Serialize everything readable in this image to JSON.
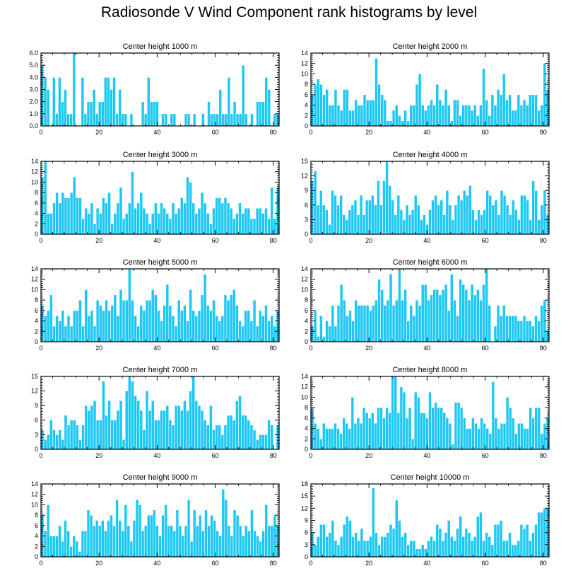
{
  "figure": {
    "title": "Radiosonde V Wind Component rank histograms by level",
    "bar_color": "#1ec8f4",
    "axis_color": "#000000"
  },
  "chart_data": [
    {
      "type": "bar",
      "title": "Center height 1000 m",
      "xlabel": "",
      "ylabel": "",
      "xlim": [
        0,
        82
      ],
      "ylim": [
        0,
        6
      ],
      "yticks": [
        0,
        1,
        2,
        3,
        4,
        5,
        6
      ],
      "ytick_labels": [
        "0.0",
        "1.0",
        "2.0",
        "3.0",
        "4.0",
        "5.0",
        "6.0"
      ],
      "xticks": [
        0,
        20,
        40,
        60,
        80
      ],
      "values": [
        5,
        4,
        3,
        0,
        4,
        1,
        4,
        2,
        3,
        1,
        1,
        6,
        0,
        0,
        4,
        1,
        2,
        2,
        3,
        1,
        2,
        2,
        4,
        4,
        3,
        4,
        1,
        3,
        1,
        1,
        0,
        1,
        0,
        0,
        0,
        2,
        1,
        4,
        2,
        2,
        2,
        0,
        1,
        1,
        0,
        1,
        1,
        0,
        0,
        0,
        1,
        1,
        0,
        1,
        0,
        0,
        1,
        0,
        2,
        1,
        1,
        1,
        3,
        1,
        1,
        4,
        1,
        2,
        1,
        1,
        5,
        1,
        0,
        1,
        0,
        2,
        2,
        2,
        4,
        3,
        0,
        1,
        1
      ]
    },
    {
      "type": "bar",
      "title": "Center height 2000 m",
      "xlabel": "",
      "ylabel": "",
      "xlim": [
        0,
        82
      ],
      "ylim": [
        0,
        14
      ],
      "yticks": [
        0,
        2,
        4,
        6,
        8,
        10,
        12,
        14
      ],
      "ytick_labels": [
        "0",
        "2",
        "4",
        "6",
        "8",
        "10",
        "12",
        "14"
      ],
      "xticks": [
        0,
        20,
        40,
        60,
        80
      ],
      "values": [
        6,
        8,
        9,
        8,
        6,
        7,
        4,
        4,
        7,
        4,
        3,
        7,
        7,
        3,
        3,
        5,
        4,
        4,
        6,
        5,
        5,
        5,
        13,
        8,
        6,
        5,
        1,
        1,
        3,
        4,
        2,
        1,
        3,
        1,
        4,
        4,
        8,
        10,
        4,
        3,
        4,
        5,
        4,
        8,
        5,
        4,
        7,
        4,
        1,
        5,
        5,
        2,
        4,
        4,
        4,
        3,
        4,
        2,
        4,
        11,
        5,
        2,
        6,
        4,
        7,
        6,
        10,
        5,
        6,
        3,
        3,
        6,
        4,
        5,
        4,
        6,
        6,
        6,
        3,
        4,
        12,
        7
      ]
    },
    {
      "type": "bar",
      "title": "Center height 3000 m",
      "xlabel": "",
      "ylabel": "",
      "xlim": [
        0,
        82
      ],
      "ylim": [
        0,
        14
      ],
      "yticks": [
        0,
        2,
        4,
        6,
        8,
        10,
        12,
        14
      ],
      "ytick_labels": [
        "0",
        "2",
        "4",
        "6",
        "8",
        "10",
        "12",
        "14"
      ],
      "xticks": [
        0,
        20,
        40,
        60,
        80
      ],
      "values": [
        11,
        14,
        4,
        4,
        6,
        8,
        6,
        8,
        7,
        7,
        8,
        11,
        7,
        7,
        3,
        5,
        4,
        6,
        2,
        5,
        4,
        7,
        6,
        8,
        2,
        4,
        6,
        9,
        3,
        4,
        6,
        12,
        5,
        6,
        8,
        5,
        4,
        2,
        4,
        6,
        4,
        6,
        5,
        4,
        3,
        6,
        4,
        5,
        7,
        6,
        11,
        10,
        6,
        4,
        5,
        8,
        6,
        4,
        2,
        5,
        7,
        7,
        6,
        7,
        6,
        5,
        3,
        4,
        6,
        4,
        5,
        5,
        3,
        3,
        5,
        5,
        4,
        5,
        3,
        9,
        3,
        9
      ]
    },
    {
      "type": "bar",
      "title": "Center height 4000 m",
      "xlabel": "",
      "ylabel": "",
      "xlim": [
        0,
        82
      ],
      "ylim": [
        0,
        15
      ],
      "yticks": [
        0,
        3,
        6,
        9,
        12,
        15
      ],
      "ytick_labels": [
        "0",
        "3",
        "6",
        "9",
        "12",
        "15"
      ],
      "xticks": [
        0,
        20,
        40,
        60,
        80
      ],
      "values": [
        11,
        13,
        6,
        9,
        6,
        5,
        2,
        9,
        8,
        6,
        8,
        4,
        3,
        5,
        6,
        7,
        4,
        8,
        4,
        7,
        7,
        8,
        6,
        11,
        6,
        11,
        15,
        10,
        7,
        4,
        8,
        5,
        3,
        6,
        4,
        5,
        8,
        6,
        3,
        4,
        2,
        5,
        7,
        8,
        6,
        7,
        4,
        9,
        6,
        3,
        6,
        8,
        7,
        9,
        8,
        10,
        5,
        3,
        5,
        4,
        5,
        9,
        8,
        6,
        7,
        4,
        9,
        8,
        6,
        4,
        7,
        5,
        3,
        8,
        8,
        7,
        3,
        11,
        9,
        3,
        6,
        9,
        4
      ]
    },
    {
      "type": "bar",
      "title": "Center height 5000 m",
      "xlabel": "",
      "ylabel": "",
      "xlim": [
        0,
        82
      ],
      "ylim": [
        0,
        14
      ],
      "yticks": [
        0,
        2,
        4,
        6,
        8,
        10,
        12,
        14
      ],
      "ytick_labels": [
        "0",
        "2",
        "4",
        "6",
        "8",
        "10",
        "12",
        "14"
      ],
      "xticks": [
        0,
        20,
        40,
        60,
        80
      ],
      "values": [
        7,
        5,
        6,
        9,
        3,
        5,
        4,
        6,
        3,
        5,
        3,
        6,
        6,
        8,
        3,
        10,
        5,
        6,
        3,
        8,
        7,
        6,
        8,
        6,
        7,
        9,
        5,
        10,
        8,
        8,
        14,
        8,
        5,
        3,
        7,
        6,
        8,
        8,
        10,
        9,
        6,
        4,
        7,
        11,
        7,
        5,
        3,
        8,
        6,
        7,
        4,
        10,
        6,
        5,
        6,
        9,
        13,
        7,
        6,
        8,
        5,
        4,
        5,
        9,
        8,
        9,
        10,
        7,
        4,
        3,
        6,
        6,
        4,
        8,
        3,
        6,
        5,
        7,
        4,
        5,
        3,
        6
      ]
    },
    {
      "type": "bar",
      "title": "Center height 6000 m",
      "xlabel": "",
      "ylabel": "",
      "xlim": [
        0,
        82
      ],
      "ylim": [
        0,
        14
      ],
      "yticks": [
        0,
        2,
        4,
        6,
        8,
        10,
        12,
        14
      ],
      "ytick_labels": [
        "0",
        "2",
        "4",
        "6",
        "8",
        "10",
        "12",
        "14"
      ],
      "xticks": [
        0,
        20,
        40,
        60,
        80
      ],
      "values": [
        3,
        6,
        1,
        5,
        1,
        4,
        3,
        7,
        3,
        7,
        11,
        8,
        5,
        6,
        4,
        8,
        7,
        7,
        7,
        7,
        6,
        7,
        8,
        12,
        10,
        7,
        8,
        13,
        7,
        8,
        14,
        8,
        10,
        4,
        7,
        5,
        8,
        7,
        11,
        11,
        8,
        9,
        10,
        10,
        9,
        10,
        11,
        6,
        13,
        8,
        5,
        12,
        11,
        10,
        8,
        11,
        9,
        10,
        8,
        11,
        14,
        7,
        0,
        3,
        7,
        5,
        7,
        5,
        5,
        5,
        5,
        4,
        4,
        5,
        4,
        4,
        3,
        5,
        4,
        7,
        8,
        2
      ]
    },
    {
      "type": "bar",
      "title": "Center height 7000 m",
      "xlabel": "",
      "ylabel": "",
      "xlim": [
        0,
        82
      ],
      "ylim": [
        0,
        15
      ],
      "yticks": [
        0,
        3,
        6,
        9,
        12,
        15
      ],
      "ytick_labels": [
        "0",
        "3",
        "6",
        "9",
        "12",
        "15"
      ],
      "xticks": [
        0,
        20,
        40,
        60,
        80
      ],
      "values": [
        4,
        2,
        3,
        6,
        4,
        3,
        4,
        2,
        7,
        5,
        6,
        6,
        5,
        2,
        5,
        9,
        8,
        9,
        10,
        6,
        6,
        14,
        7,
        10,
        6,
        6,
        8,
        10,
        2,
        12,
        15,
        14,
        11,
        10,
        8,
        4,
        12,
        8,
        10,
        6,
        6,
        8,
        8,
        9,
        6,
        5,
        9,
        9,
        8,
        10,
        8,
        12,
        15,
        10,
        9,
        8,
        6,
        5,
        9,
        4,
        5,
        5,
        3,
        5,
        7,
        7,
        6,
        10,
        11,
        7,
        7,
        6,
        5,
        4,
        2,
        3,
        3,
        3,
        6,
        5,
        0,
        5
      ]
    },
    {
      "type": "bar",
      "title": "Center height 8000 m",
      "xlabel": "",
      "ylabel": "",
      "xlim": [
        0,
        82
      ],
      "ylim": [
        0,
        14
      ],
      "yticks": [
        0,
        2,
        4,
        6,
        8,
        10,
        12,
        14
      ],
      "ytick_labels": [
        "0",
        "2",
        "4",
        "6",
        "8",
        "10",
        "12",
        "14"
      ],
      "xticks": [
        0,
        20,
        40,
        60,
        80
      ],
      "values": [
        8,
        5,
        4,
        2,
        5,
        4,
        4,
        4,
        5,
        4,
        3,
        6,
        5,
        4,
        10,
        5,
        6,
        5,
        8,
        7,
        6,
        7,
        5,
        8,
        8,
        6,
        8,
        7,
        14,
        14,
        7,
        12,
        11,
        6,
        8,
        2,
        11,
        10,
        7,
        7,
        6,
        11,
        8,
        9,
        8,
        8,
        7,
        6,
        5,
        1,
        9,
        9,
        8,
        6,
        4,
        4,
        6,
        5,
        4,
        6,
        5,
        4,
        3,
        13,
        6,
        4,
        5,
        5,
        10,
        8,
        6,
        3,
        5,
        5,
        4,
        4,
        8,
        6,
        8,
        8,
        3,
        5,
        6
      ]
    },
    {
      "type": "bar",
      "title": "Center height 9000 m",
      "xlabel": "",
      "ylabel": "",
      "xlim": [
        0,
        82
      ],
      "ylim": [
        0,
        14
      ],
      "yticks": [
        0,
        2,
        4,
        6,
        8,
        10,
        12,
        14
      ],
      "ytick_labels": [
        "0",
        "2",
        "4",
        "6",
        "8",
        "10",
        "12",
        "14"
      ],
      "xticks": [
        0,
        20,
        40,
        60,
        80
      ],
      "values": [
        8,
        5,
        10,
        4,
        4,
        4,
        6,
        3,
        7,
        5,
        2,
        4,
        3,
        1,
        5,
        5,
        9,
        8,
        6,
        7,
        6,
        7,
        5,
        7,
        8,
        6,
        11,
        7,
        5,
        10,
        6,
        3,
        7,
        11,
        10,
        5,
        6,
        8,
        8,
        9,
        6,
        4,
        8,
        10,
        6,
        6,
        5,
        9,
        6,
        4,
        6,
        11,
        3,
        9,
        6,
        8,
        5,
        9,
        6,
        8,
        7,
        5,
        4,
        13,
        11,
        6,
        4,
        9,
        8,
        6,
        4,
        6,
        5,
        9,
        5,
        4,
        3,
        5,
        10,
        6,
        6,
        8,
        6
      ]
    },
    {
      "type": "bar",
      "title": "Center height 10000 m",
      "xlabel": "",
      "ylabel": "",
      "xlim": [
        0,
        82
      ],
      "ylim": [
        0,
        18
      ],
      "yticks": [
        0,
        3,
        6,
        9,
        12,
        15,
        18
      ],
      "ytick_labels": [
        "0",
        "3",
        "6",
        "9",
        "12",
        "15",
        "18"
      ],
      "xticks": [
        0,
        20,
        40,
        60,
        80
      ],
      "values": [
        6,
        3,
        5,
        8,
        8,
        5,
        6,
        9,
        4,
        3,
        5,
        8,
        10,
        9,
        5,
        6,
        4,
        7,
        4,
        4,
        5,
        17,
        6,
        3,
        5,
        5,
        6,
        8,
        7,
        14,
        9,
        5,
        6,
        3,
        4,
        4,
        2,
        2,
        3,
        2,
        4,
        5,
        4,
        8,
        7,
        4,
        6,
        9,
        5,
        4,
        7,
        10,
        5,
        7,
        6,
        4,
        5,
        10,
        11,
        4,
        6,
        5,
        3,
        8,
        8,
        9,
        4,
        4,
        6,
        3,
        3,
        4,
        8,
        7,
        8,
        4,
        6,
        8,
        11,
        11,
        12,
        12
      ]
    }
  ]
}
